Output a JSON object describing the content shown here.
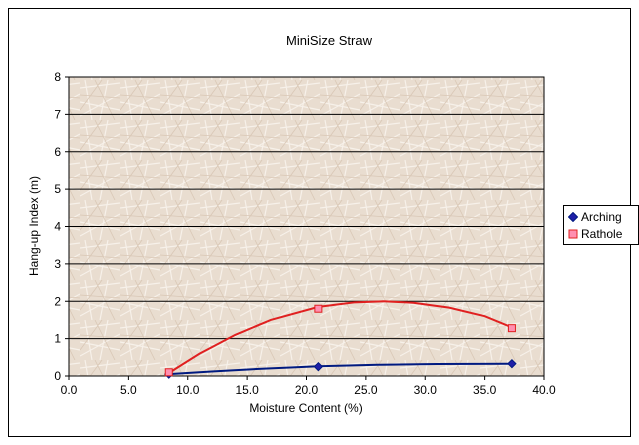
{
  "chart_data": {
    "type": "scatter",
    "title": "MiniSize Straw",
    "xlabel": "Moisture Content (%)",
    "ylabel": "Hang-up Index (m)",
    "xlim": [
      0,
      40
    ],
    "ylim": [
      0,
      8
    ],
    "x_ticks": [
      "0.0",
      "5.0",
      "10.0",
      "15.0",
      "20.0",
      "25.0",
      "30.0",
      "35.0",
      "40.0"
    ],
    "y_ticks": [
      "0",
      "1",
      "2",
      "3",
      "4",
      "5",
      "6",
      "7",
      "8"
    ],
    "grid": "horizontal",
    "legend_position": "right",
    "series": [
      {
        "name": "Arching",
        "color": "#1f1fa8",
        "line_color": "#001a80",
        "marker": "diamond",
        "points": [
          [
            8.4,
            0.05
          ],
          [
            21.0,
            0.25
          ],
          [
            37.3,
            0.33
          ]
        ],
        "trend": [
          [
            8.4,
            0.05
          ],
          [
            12,
            0.12
          ],
          [
            16,
            0.19
          ],
          [
            21,
            0.26
          ],
          [
            26,
            0.3
          ],
          [
            31,
            0.32
          ],
          [
            37.3,
            0.33
          ]
        ]
      },
      {
        "name": "Rathole",
        "color": "#ff8fb0",
        "line_color": "#e02020",
        "marker": "square",
        "points": [
          [
            8.4,
            0.1
          ],
          [
            21.0,
            1.8
          ],
          [
            37.3,
            1.28
          ]
        ],
        "trend": [
          [
            8.4,
            0.08
          ],
          [
            11,
            0.6
          ],
          [
            14,
            1.1
          ],
          [
            17,
            1.5
          ],
          [
            21,
            1.85
          ],
          [
            24,
            1.97
          ],
          [
            26.5,
            2.0
          ],
          [
            29,
            1.96
          ],
          [
            32,
            1.83
          ],
          [
            35,
            1.6
          ],
          [
            37.3,
            1.3
          ]
        ]
      }
    ]
  }
}
